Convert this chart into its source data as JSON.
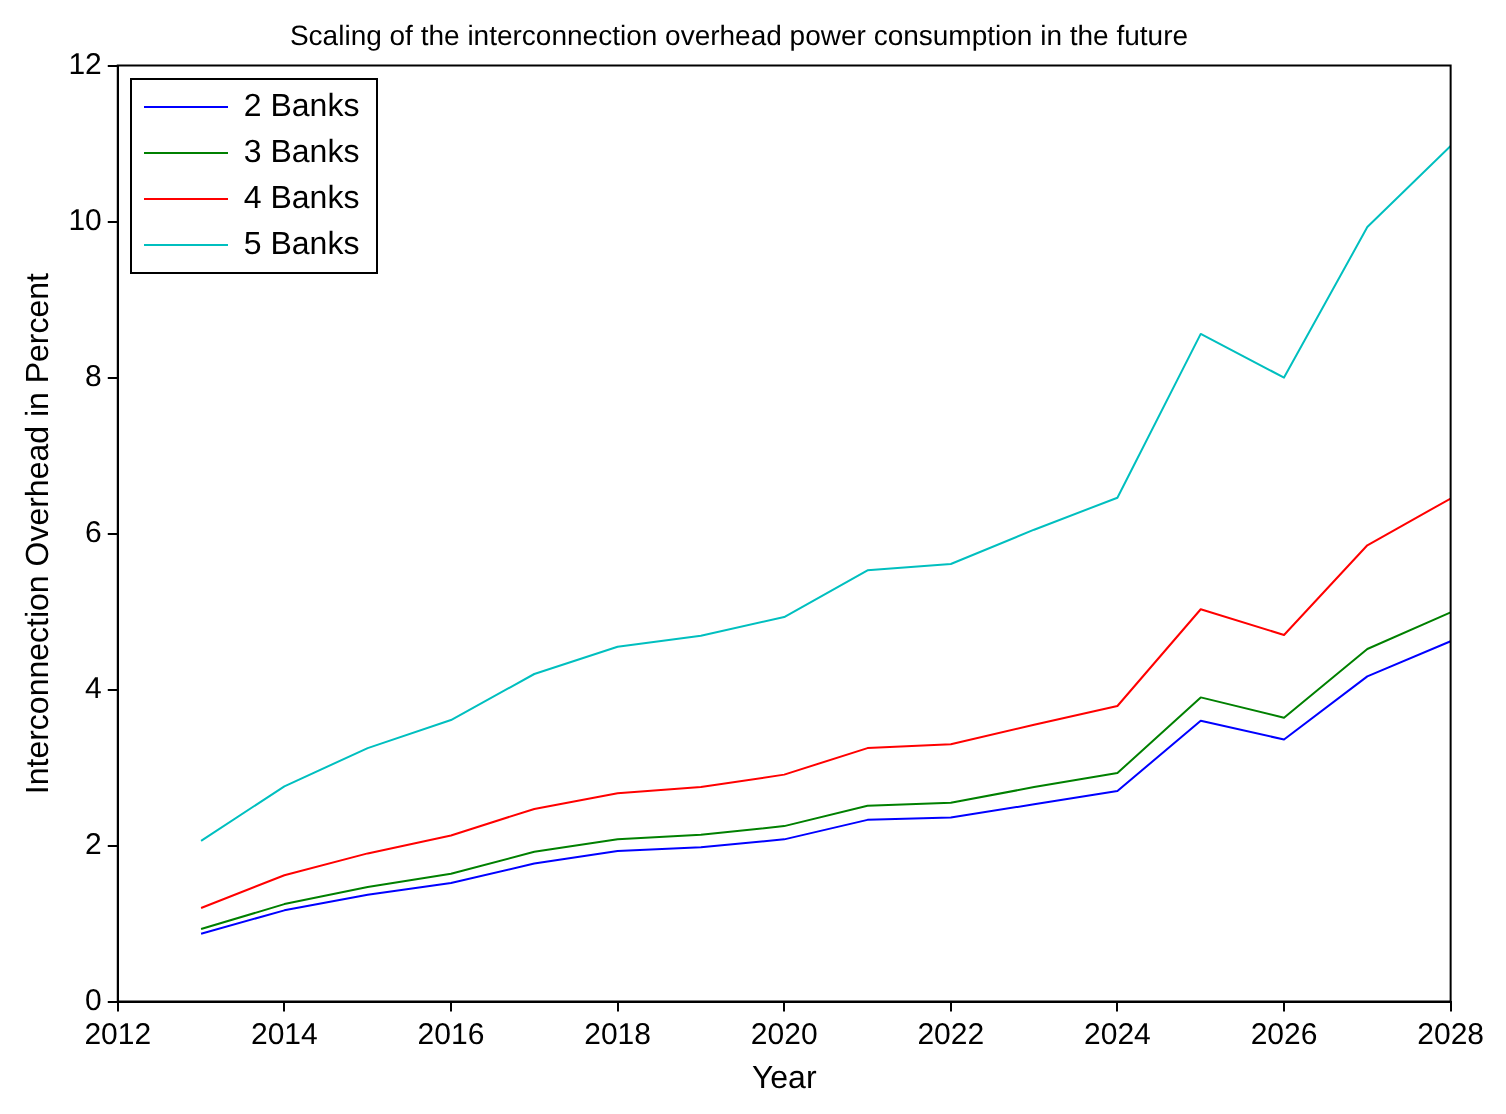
{
  "chart_data": {
    "type": "line",
    "title": "Scaling of the interconnection overhead power consumption in the future",
    "xlabel": "Year",
    "ylabel": "Interconnection Overhead in Percent",
    "x": [
      2013,
      2014,
      2015,
      2016,
      2017,
      2018,
      2019,
      2020,
      2021,
      2022,
      2023,
      2024,
      2025,
      2026,
      2027,
      2028
    ],
    "series": [
      {
        "name": "2 Banks",
        "color": "#0000ff",
        "values": [
          0.87,
          1.17,
          1.37,
          1.52,
          1.77,
          1.93,
          1.98,
          2.08,
          2.33,
          2.36,
          2.53,
          2.7,
          3.6,
          3.36,
          4.17,
          4.62
        ]
      },
      {
        "name": "3 Banks",
        "color": "#008000",
        "values": [
          0.93,
          1.25,
          1.47,
          1.64,
          1.92,
          2.08,
          2.14,
          2.25,
          2.51,
          2.55,
          2.75,
          2.93,
          3.9,
          3.64,
          4.52,
          4.99
        ]
      },
      {
        "name": "4 Banks",
        "color": "#ff0000",
        "values": [
          1.2,
          1.62,
          1.9,
          2.13,
          2.47,
          2.67,
          2.75,
          2.91,
          3.25,
          3.3,
          3.55,
          3.79,
          5.03,
          4.7,
          5.85,
          6.45
        ]
      },
      {
        "name": "5 Banks",
        "color": "#00bfbf",
        "values": [
          2.06,
          2.76,
          3.25,
          3.61,
          4.2,
          4.55,
          4.69,
          4.93,
          5.53,
          5.61,
          6.05,
          6.46,
          8.56,
          8.0,
          9.93,
          10.97
        ]
      }
    ],
    "xlim": [
      2012,
      2028
    ],
    "xticks": [
      2012,
      2014,
      2016,
      2018,
      2020,
      2022,
      2024,
      2026,
      2028
    ],
    "ylim": [
      0,
      12
    ],
    "yticks": [
      0,
      2,
      4,
      6,
      8,
      10,
      12
    ],
    "grid": false,
    "legend": "top left",
    "marker": "none",
    "line_style": "solid"
  }
}
